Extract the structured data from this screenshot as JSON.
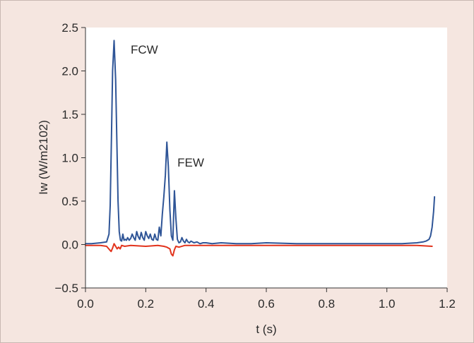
{
  "chart_data": {
    "type": "line",
    "title": "",
    "xlabel": "t (s)",
    "ylabel": "Iw (W/m2102)",
    "xlim": [
      0.0,
      1.2
    ],
    "ylim": [
      -0.5,
      2.5
    ],
    "x_ticks": [
      "0.0",
      "0.2",
      "0.4",
      "0.6",
      "0.8",
      "1.0",
      "1.2"
    ],
    "y_ticks": [
      "−0.5",
      "0.0",
      "0.5",
      "1.0",
      "1.5",
      "2.0",
      "2.5"
    ],
    "x_tick_values": [
      0.0,
      0.2,
      0.4,
      0.6,
      0.8,
      1.0,
      1.2
    ],
    "y_tick_values": [
      -0.5,
      0.0,
      0.5,
      1.0,
      1.5,
      2.0,
      2.5
    ],
    "grid": false,
    "annotations": [
      {
        "text": "FCW",
        "x": 0.15,
        "y": 2.2
      },
      {
        "text": "FEW",
        "x": 0.305,
        "y": 0.9
      }
    ],
    "series": [
      {
        "color": "#2f5597",
        "x": [
          0.0,
          0.02,
          0.05,
          0.07,
          0.078,
          0.082,
          0.086,
          0.09,
          0.095,
          0.1,
          0.104,
          0.108,
          0.112,
          0.116,
          0.12,
          0.124,
          0.128,
          0.132,
          0.136,
          0.14,
          0.145,
          0.15,
          0.155,
          0.16,
          0.165,
          0.17,
          0.175,
          0.18,
          0.185,
          0.19,
          0.195,
          0.2,
          0.205,
          0.21,
          0.215,
          0.22,
          0.225,
          0.23,
          0.235,
          0.24,
          0.245,
          0.25,
          0.255,
          0.26,
          0.265,
          0.27,
          0.275,
          0.28,
          0.285,
          0.29,
          0.295,
          0.3,
          0.305,
          0.31,
          0.315,
          0.32,
          0.325,
          0.33,
          0.335,
          0.34,
          0.345,
          0.35,
          0.36,
          0.37,
          0.38,
          0.39,
          0.4,
          0.42,
          0.45,
          0.5,
          0.55,
          0.6,
          0.7,
          0.8,
          0.9,
          1.0,
          1.05,
          1.1,
          1.12,
          1.13,
          1.14,
          1.145,
          1.15,
          1.155,
          1.158
        ],
        "values": [
          0.01,
          0.01,
          0.02,
          0.03,
          0.12,
          0.45,
          1.2,
          2.0,
          2.35,
          1.9,
          1.2,
          0.5,
          0.15,
          0.05,
          0.04,
          0.12,
          0.05,
          0.06,
          0.05,
          0.08,
          0.05,
          0.07,
          0.12,
          0.08,
          0.05,
          0.15,
          0.09,
          0.06,
          0.14,
          0.08,
          0.05,
          0.15,
          0.1,
          0.07,
          0.12,
          0.06,
          0.05,
          0.12,
          0.06,
          0.05,
          0.2,
          0.1,
          0.35,
          0.55,
          0.8,
          1.18,
          0.9,
          0.4,
          0.1,
          0.05,
          0.62,
          0.3,
          0.06,
          0.02,
          0.03,
          0.08,
          0.04,
          0.02,
          0.06,
          0.03,
          0.02,
          0.04,
          0.02,
          0.03,
          0.01,
          0.02,
          0.02,
          0.01,
          0.02,
          0.01,
          0.01,
          0.02,
          0.01,
          0.01,
          0.01,
          0.01,
          0.01,
          0.02,
          0.03,
          0.04,
          0.06,
          0.1,
          0.2,
          0.38,
          0.55
        ]
      },
      {
        "color": "#e2331c",
        "x": [
          0.0,
          0.05,
          0.07,
          0.08,
          0.085,
          0.09,
          0.095,
          0.1,
          0.105,
          0.11,
          0.115,
          0.12,
          0.13,
          0.15,
          0.2,
          0.24,
          0.26,
          0.27,
          0.28,
          0.285,
          0.29,
          0.295,
          0.3,
          0.31,
          0.33,
          0.4,
          0.5,
          0.6,
          0.7,
          0.8,
          0.9,
          1.0,
          1.05,
          1.1,
          1.15
        ],
        "values": [
          -0.01,
          -0.01,
          -0.02,
          -0.06,
          -0.08,
          -0.04,
          0.01,
          -0.02,
          -0.05,
          -0.03,
          -0.05,
          -0.01,
          -0.02,
          -0.01,
          -0.02,
          -0.01,
          -0.02,
          -0.03,
          -0.05,
          -0.11,
          -0.13,
          -0.06,
          -0.02,
          -0.03,
          -0.01,
          -0.01,
          -0.01,
          -0.01,
          -0.01,
          -0.01,
          -0.01,
          -0.01,
          -0.01,
          -0.01,
          -0.02
        ]
      }
    ]
  }
}
